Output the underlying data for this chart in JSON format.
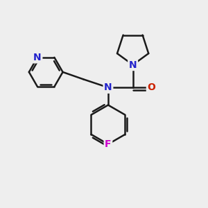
{
  "bg_color": "#eeeeee",
  "bond_color": "#1a1a1a",
  "N_color": "#2222cc",
  "O_color": "#cc2200",
  "F_color": "#cc00cc",
  "line_width": 1.8,
  "font_size_atom": 10,
  "fig_size": [
    3.0,
    3.0
  ],
  "dpi": 100,
  "xlim": [
    0,
    10
  ],
  "ylim": [
    0,
    10
  ]
}
